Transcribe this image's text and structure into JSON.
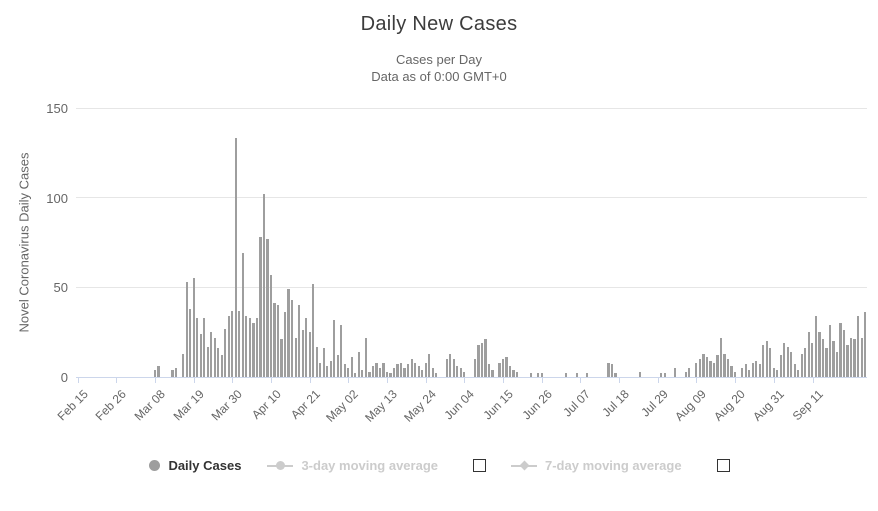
{
  "title": "Daily New Cases",
  "subtitle_line1": "Cases per Day",
  "subtitle_line2": "Data as of 0:00 GMT+0",
  "colors": {
    "bar": "#9e9e9e",
    "title_text": "#3c3c3c",
    "subtitle_text": "#666666",
    "axis_label_text": "#666666",
    "gridline": "#e6e6e6",
    "axis_line": "#ccd6eb",
    "legend_enabled_text": "#333333",
    "legend_disabled": "#cccccc",
    "checkbox_border": "#333333"
  },
  "legend": {
    "items": [
      {
        "label": "Daily Cases",
        "marker": "circle",
        "enabled": true,
        "has_checkbox": false
      },
      {
        "label": "3-day moving average",
        "marker": "line-circle",
        "enabled": false,
        "has_checkbox": true,
        "checkbox_checked": false
      },
      {
        "label": "7-day moving average",
        "marker": "line-diamond",
        "enabled": false,
        "has_checkbox": true,
        "checkbox_checked": false
      }
    ]
  },
  "chart_data": {
    "type": "bar",
    "title": "Daily New Cases",
    "subtitle": [
      "Cases per Day",
      "Data as of 0:00 GMT+0"
    ],
    "ylabel": "Novel Coronavirus Daily Cases",
    "xlabel": "",
    "ylim": [
      0,
      150
    ],
    "y_ticks": [
      0,
      50,
      100,
      150
    ],
    "grid": "horizontal",
    "legend_position": "bottom",
    "series_name": "Daily Cases",
    "start_date": "Feb 15",
    "end_date": "Sep 26",
    "x_tick_interval_days": 11,
    "x_tick_labels": [
      "Feb 15",
      "Feb 26",
      "Mar 08",
      "Mar 19",
      "Mar 30",
      "Apr 10",
      "Apr 21",
      "May 02",
      "May 13",
      "May 24",
      "Jun 04",
      "Jun 15",
      "Jun 26",
      "Jul 07",
      "Jul 18",
      "Jul 29",
      "Aug 09",
      "Aug 20",
      "Aug 31",
      "Sep 11"
    ],
    "values": [
      0,
      0,
      0,
      0,
      0,
      0,
      0,
      0,
      0,
      0,
      0,
      0,
      0,
      0,
      0,
      0,
      0,
      0,
      0,
      0,
      0,
      0,
      4,
      6,
      0,
      0,
      0,
      4,
      5,
      0,
      13,
      53,
      38,
      55,
      33,
      24,
      33,
      17,
      25,
      22,
      16,
      12,
      27,
      34,
      37,
      133,
      37,
      69,
      34,
      33,
      30,
      33,
      78,
      102,
      77,
      57,
      41,
      40,
      21,
      36,
      49,
      43,
      22,
      40,
      26,
      33,
      25,
      52,
      17,
      8,
      16,
      6,
      9,
      32,
      12,
      29,
      7,
      5,
      11,
      2,
      14,
      4,
      22,
      3,
      6,
      8,
      5,
      8,
      3,
      2,
      5,
      7,
      8,
      5,
      7,
      10,
      8,
      6,
      4,
      8,
      13,
      5,
      2,
      0,
      0,
      10,
      13,
      10,
      6,
      5,
      3,
      0,
      0,
      10,
      18,
      19,
      21,
      7,
      4,
      0,
      8,
      10,
      11,
      6,
      4,
      3,
      0,
      0,
      0,
      2,
      0,
      2,
      2,
      0,
      0,
      0,
      0,
      0,
      0,
      2,
      0,
      0,
      2,
      0,
      0,
      2,
      0,
      0,
      0,
      0,
      0,
      8,
      7,
      2,
      0,
      0,
      0,
      0,
      0,
      0,
      3,
      0,
      0,
      0,
      0,
      0,
      2,
      2,
      0,
      0,
      5,
      0,
      0,
      3,
      5,
      0,
      8,
      10,
      13,
      11,
      9,
      8,
      12,
      22,
      13,
      10,
      6,
      3,
      0,
      5,
      7,
      4,
      8,
      9,
      7,
      18,
      20,
      16,
      5,
      4,
      12,
      19,
      17,
      14,
      7,
      4,
      13,
      16,
      25,
      19,
      34,
      25,
      21,
      16,
      29,
      20,
      14,
      30,
      26,
      18,
      22,
      21,
      34,
      22,
      36
    ]
  }
}
